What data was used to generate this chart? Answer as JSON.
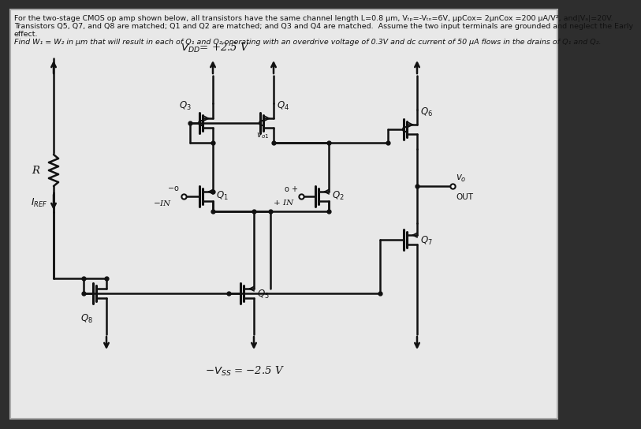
{
  "bg_color": "#2e2e2e",
  "page_bg": "#e8e8e8",
  "lc": "#111111",
  "lw": 1.8,
  "text1": "For the two-stage CMOS op amp shown below, all transistors have the same channel length L=0.8 μm, Vₜₚ=-Vₜₙ=6V, μpCox= 2μnCox =200 μA/V², and|Vₐ|=20V.",
  "text2": "Transistors Q5, Q7, and Q8 are matched; Q1 and Q2 are matched; and Q3 and Q4 are matched.  Assume the two input terminals are grounded and neglect the Early",
  "text3": "effect.",
  "text4": "Find W₁ = W₂ in μm that will result in each of Q₁ and Q₂ operating with an overdrive voltage of 0.3V and dc current of 50 μA flows in the drains of Q₁ and Q₂.",
  "fs_text": 6.8,
  "fs_label": 9.5,
  "fs_small": 8.5
}
